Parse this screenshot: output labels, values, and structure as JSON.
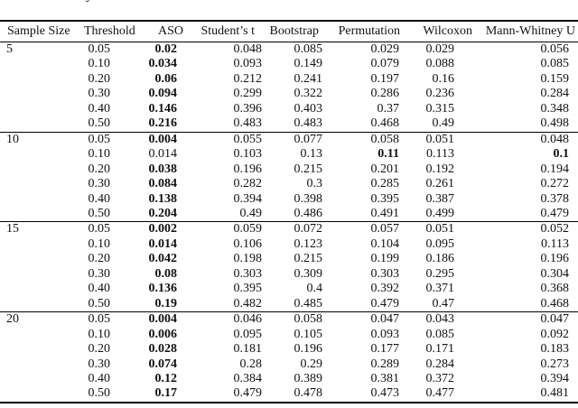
{
  "caption_fragment": "y",
  "table": {
    "columns": [
      "Sample Size",
      "Threshold",
      "ASO",
      "Student’s t",
      "Bootstrap",
      "Permutation",
      "Wilcoxon",
      "Mann-Whitney U"
    ],
    "groups": [
      {
        "sample_size": "5",
        "rows": [
          {
            "threshold": "0.05",
            "cells": [
              {
                "v": "0.02",
                "b": true
              },
              {
                "v": "0.048",
                "b": false
              },
              {
                "v": "0.085",
                "b": false
              },
              {
                "v": "0.029",
                "b": false
              },
              {
                "v": "0.029",
                "b": false
              },
              {
                "v": "0.056",
                "b": false
              }
            ]
          },
          {
            "threshold": "0.10",
            "cells": [
              {
                "v": "0.034",
                "b": true
              },
              {
                "v": "0.093",
                "b": false
              },
              {
                "v": "0.149",
                "b": false
              },
              {
                "v": "0.079",
                "b": false
              },
              {
                "v": "0.088",
                "b": false
              },
              {
                "v": "0.085",
                "b": false
              }
            ]
          },
          {
            "threshold": "0.20",
            "cells": [
              {
                "v": "0.06",
                "b": true
              },
              {
                "v": "0.212",
                "b": false
              },
              {
                "v": "0.241",
                "b": false
              },
              {
                "v": "0.197",
                "b": false
              },
              {
                "v": "0.16",
                "b": false
              },
              {
                "v": "0.159",
                "b": false
              }
            ]
          },
          {
            "threshold": "0.30",
            "cells": [
              {
                "v": "0.094",
                "b": true
              },
              {
                "v": "0.299",
                "b": false
              },
              {
                "v": "0.322",
                "b": false
              },
              {
                "v": "0.286",
                "b": false
              },
              {
                "v": "0.236",
                "b": false
              },
              {
                "v": "0.284",
                "b": false
              }
            ]
          },
          {
            "threshold": "0.40",
            "cells": [
              {
                "v": "0.146",
                "b": true
              },
              {
                "v": "0.396",
                "b": false
              },
              {
                "v": "0.403",
                "b": false
              },
              {
                "v": "0.37",
                "b": false
              },
              {
                "v": "0.315",
                "b": false
              },
              {
                "v": "0.348",
                "b": false
              }
            ]
          },
          {
            "threshold": "0.50",
            "cells": [
              {
                "v": "0.216",
                "b": true
              },
              {
                "v": "0.483",
                "b": false
              },
              {
                "v": "0.483",
                "b": false
              },
              {
                "v": "0.468",
                "b": false
              },
              {
                "v": "0.49",
                "b": false
              },
              {
                "v": "0.498",
                "b": false
              }
            ]
          }
        ]
      },
      {
        "sample_size": "10",
        "rows": [
          {
            "threshold": "0.05",
            "cells": [
              {
                "v": "0.004",
                "b": true
              },
              {
                "v": "0.055",
                "b": false
              },
              {
                "v": "0.077",
                "b": false
              },
              {
                "v": "0.058",
                "b": false
              },
              {
                "v": "0.051",
                "b": false
              },
              {
                "v": "0.048",
                "b": false
              }
            ]
          },
          {
            "threshold": "0.10",
            "cells": [
              {
                "v": "0.014",
                "b": false
              },
              {
                "v": "0.103",
                "b": false
              },
              {
                "v": "0.13",
                "b": false
              },
              {
                "v": "0.11",
                "b": true
              },
              {
                "v": "0.113",
                "b": false
              },
              {
                "v": "0.1",
                "b": true
              }
            ]
          },
          {
            "threshold": "0.20",
            "cells": [
              {
                "v": "0.038",
                "b": true
              },
              {
                "v": "0.196",
                "b": false
              },
              {
                "v": "0.215",
                "b": false
              },
              {
                "v": "0.201",
                "b": false
              },
              {
                "v": "0.192",
                "b": false
              },
              {
                "v": "0.194",
                "b": false
              }
            ]
          },
          {
            "threshold": "0.30",
            "cells": [
              {
                "v": "0.084",
                "b": true
              },
              {
                "v": "0.282",
                "b": false
              },
              {
                "v": "0.3",
                "b": false
              },
              {
                "v": "0.285",
                "b": false
              },
              {
                "v": "0.261",
                "b": false
              },
              {
                "v": "0.272",
                "b": false
              }
            ]
          },
          {
            "threshold": "0.40",
            "cells": [
              {
                "v": "0.138",
                "b": true
              },
              {
                "v": "0.394",
                "b": false
              },
              {
                "v": "0.398",
                "b": false
              },
              {
                "v": "0.395",
                "b": false
              },
              {
                "v": "0.387",
                "b": false
              },
              {
                "v": "0.378",
                "b": false
              }
            ]
          },
          {
            "threshold": "0.50",
            "cells": [
              {
                "v": "0.204",
                "b": true
              },
              {
                "v": "0.49",
                "b": false
              },
              {
                "v": "0.486",
                "b": false
              },
              {
                "v": "0.491",
                "b": false
              },
              {
                "v": "0.499",
                "b": false
              },
              {
                "v": "0.479",
                "b": false
              }
            ]
          }
        ]
      },
      {
        "sample_size": "15",
        "rows": [
          {
            "threshold": "0.05",
            "cells": [
              {
                "v": "0.002",
                "b": true
              },
              {
                "v": "0.059",
                "b": false
              },
              {
                "v": "0.072",
                "b": false
              },
              {
                "v": "0.057",
                "b": false
              },
              {
                "v": "0.051",
                "b": false
              },
              {
                "v": "0.052",
                "b": false
              }
            ]
          },
          {
            "threshold": "0.10",
            "cells": [
              {
                "v": "0.014",
                "b": true
              },
              {
                "v": "0.106",
                "b": false
              },
              {
                "v": "0.123",
                "b": false
              },
              {
                "v": "0.104",
                "b": false
              },
              {
                "v": "0.095",
                "b": false
              },
              {
                "v": "0.113",
                "b": false
              }
            ]
          },
          {
            "threshold": "0.20",
            "cells": [
              {
                "v": "0.042",
                "b": true
              },
              {
                "v": "0.198",
                "b": false
              },
              {
                "v": "0.215",
                "b": false
              },
              {
                "v": "0.199",
                "b": false
              },
              {
                "v": "0.186",
                "b": false
              },
              {
                "v": "0.196",
                "b": false
              }
            ]
          },
          {
            "threshold": "0.30",
            "cells": [
              {
                "v": "0.08",
                "b": true
              },
              {
                "v": "0.303",
                "b": false
              },
              {
                "v": "0.309",
                "b": false
              },
              {
                "v": "0.303",
                "b": false
              },
              {
                "v": "0.295",
                "b": false
              },
              {
                "v": "0.304",
                "b": false
              }
            ]
          },
          {
            "threshold": "0.40",
            "cells": [
              {
                "v": "0.136",
                "b": true
              },
              {
                "v": "0.395",
                "b": false
              },
              {
                "v": "0.4",
                "b": false
              },
              {
                "v": "0.392",
                "b": false
              },
              {
                "v": "0.371",
                "b": false
              },
              {
                "v": "0.368",
                "b": false
              }
            ]
          },
          {
            "threshold": "0.50",
            "cells": [
              {
                "v": "0.19",
                "b": true
              },
              {
                "v": "0.482",
                "b": false
              },
              {
                "v": "0.485",
                "b": false
              },
              {
                "v": "0.479",
                "b": false
              },
              {
                "v": "0.47",
                "b": false
              },
              {
                "v": "0.468",
                "b": false
              }
            ]
          }
        ]
      },
      {
        "sample_size": "20",
        "rows": [
          {
            "threshold": "0.05",
            "cells": [
              {
                "v": "0.004",
                "b": true
              },
              {
                "v": "0.046",
                "b": false
              },
              {
                "v": "0.058",
                "b": false
              },
              {
                "v": "0.047",
                "b": false
              },
              {
                "v": "0.043",
                "b": false
              },
              {
                "v": "0.047",
                "b": false
              }
            ]
          },
          {
            "threshold": "0.10",
            "cells": [
              {
                "v": "0.006",
                "b": true
              },
              {
                "v": "0.095",
                "b": false
              },
              {
                "v": "0.105",
                "b": false
              },
              {
                "v": "0.093",
                "b": false
              },
              {
                "v": "0.085",
                "b": false
              },
              {
                "v": "0.092",
                "b": false
              }
            ]
          },
          {
            "threshold": "0.20",
            "cells": [
              {
                "v": "0.028",
                "b": true
              },
              {
                "v": "0.181",
                "b": false
              },
              {
                "v": "0.196",
                "b": false
              },
              {
                "v": "0.177",
                "b": false
              },
              {
                "v": "0.171",
                "b": false
              },
              {
                "v": "0.183",
                "b": false
              }
            ]
          },
          {
            "threshold": "0.30",
            "cells": [
              {
                "v": "0.074",
                "b": true
              },
              {
                "v": "0.28",
                "b": false
              },
              {
                "v": "0.29",
                "b": false
              },
              {
                "v": "0.289",
                "b": false
              },
              {
                "v": "0.284",
                "b": false
              },
              {
                "v": "0.273",
                "b": false
              }
            ]
          },
          {
            "threshold": "0.40",
            "cells": [
              {
                "v": "0.12",
                "b": true
              },
              {
                "v": "0.384",
                "b": false
              },
              {
                "v": "0.389",
                "b": false
              },
              {
                "v": "0.381",
                "b": false
              },
              {
                "v": "0.372",
                "b": false
              },
              {
                "v": "0.394",
                "b": false
              }
            ]
          },
          {
            "threshold": "0.50",
            "cells": [
              {
                "v": "0.17",
                "b": true
              },
              {
                "v": "0.479",
                "b": false
              },
              {
                "v": "0.478",
                "b": false
              },
              {
                "v": "0.473",
                "b": false
              },
              {
                "v": "0.477",
                "b": false
              },
              {
                "v": "0.481",
                "b": false
              }
            ]
          }
        ]
      }
    ]
  }
}
